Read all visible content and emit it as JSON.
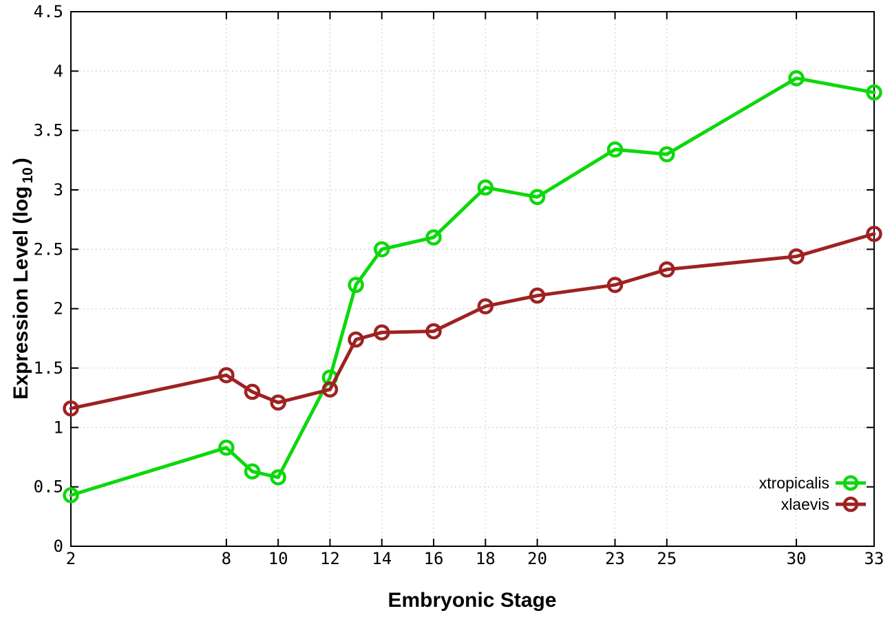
{
  "chart_data": {
    "type": "line",
    "title": "",
    "xlabel": "Embryonic Stage",
    "ylabel": {
      "prefix": "Expression Level (log",
      "subscript": "10",
      "suffix": ")"
    },
    "xlim": [
      2,
      33
    ],
    "ylim": [
      0,
      4.5
    ],
    "xticks": [
      2,
      8,
      10,
      12,
      14,
      16,
      18,
      20,
      23,
      25,
      30,
      33
    ],
    "yticks": [
      0,
      0.5,
      1,
      1.5,
      2,
      2.5,
      3,
      3.5,
      4,
      4.5
    ],
    "grid": true,
    "legend_position": "bottom-right",
    "x": [
      2,
      8,
      9,
      10,
      12,
      13,
      14,
      16,
      18,
      20,
      23,
      25,
      30,
      33
    ],
    "series": [
      {
        "name": "xtropicalis",
        "color": "#0cd80c",
        "values": [
          0.43,
          0.83,
          0.63,
          0.58,
          1.42,
          2.2,
          2.5,
          2.6,
          3.02,
          2.94,
          3.34,
          3.3,
          3.94,
          3.82
        ]
      },
      {
        "name": "xlaevis",
        "color": "#9e2222",
        "values": [
          1.16,
          1.44,
          1.3,
          1.21,
          1.32,
          1.74,
          1.8,
          1.81,
          2.02,
          2.11,
          2.2,
          2.33,
          2.44,
          2.63
        ]
      }
    ],
    "colors": {
      "grid": "#c8c8c8",
      "frame": "#000000",
      "text": "#000000"
    }
  }
}
